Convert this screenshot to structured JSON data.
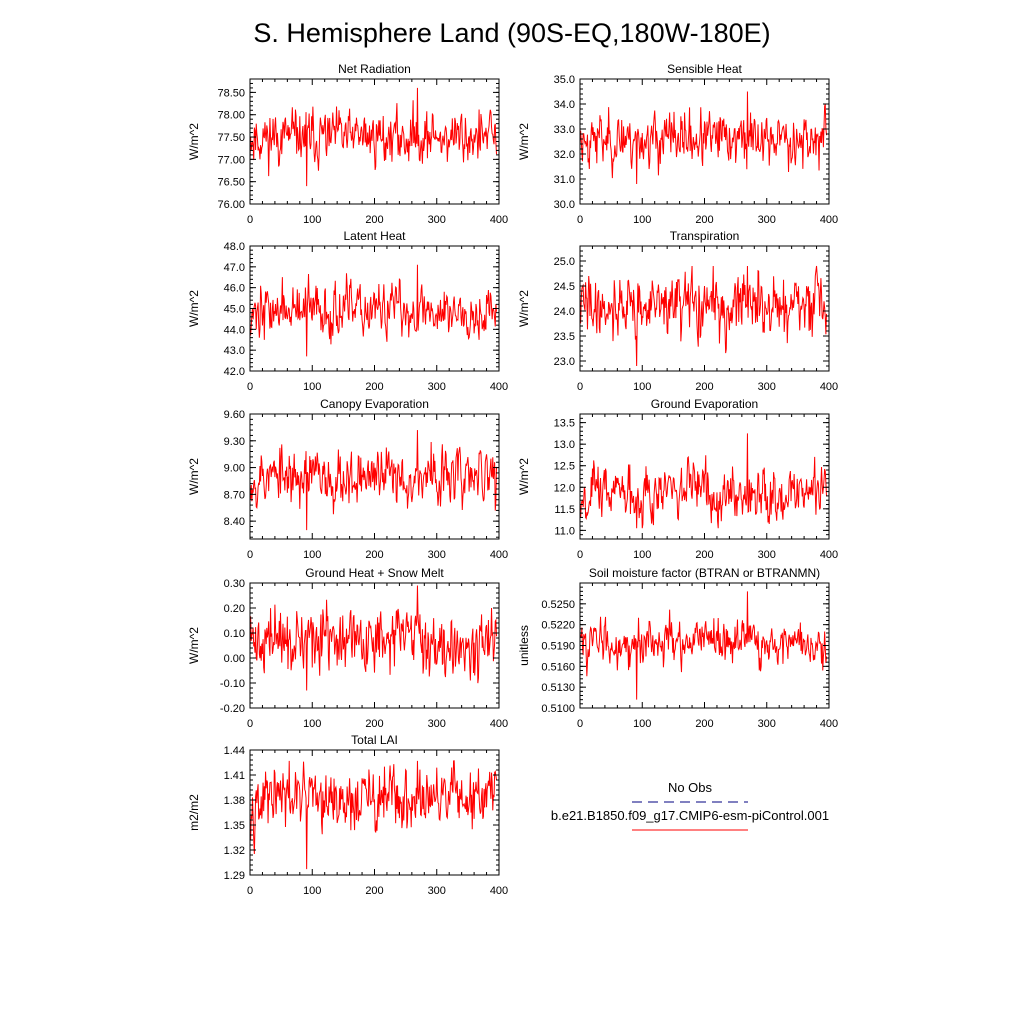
{
  "figure": {
    "title": "S. Hemisphere Land (90S-EQ,180W-180E)",
    "series_color": "#ff0000",
    "obs_color": "#000080"
  },
  "legend": {
    "obs_label": "No Obs",
    "model_label": "b.e21.B1850.f09_g17.CMIP6-esm-piControl.001"
  },
  "chart_data": [
    {
      "type": "line",
      "title": "Net Radiation",
      "xlabel": "",
      "ylabel": "W/m^2",
      "xlim": [
        0,
        400
      ],
      "ylim": [
        76.0,
        78.8
      ],
      "xticks": [
        0,
        100,
        200,
        300,
        400
      ],
      "yticks": [
        76.0,
        76.5,
        77.0,
        77.5,
        78.0,
        78.5
      ],
      "ytick_labels": [
        "76.00",
        "76.50",
        "77.00",
        "77.50",
        "78.00",
        "78.50"
      ],
      "series": [
        {
          "mean": 77.5,
          "amp": 0.28,
          "min": 76.4,
          "max": 78.6,
          "seed": 11
        }
      ]
    },
    {
      "type": "line",
      "title": "Sensible Heat",
      "xlabel": "",
      "ylabel": "W/m^2",
      "xlim": [
        0,
        400
      ],
      "ylim": [
        30.0,
        35.0
      ],
      "xticks": [
        0,
        100,
        200,
        300,
        400
      ],
      "yticks": [
        30.0,
        31.0,
        32.0,
        33.0,
        34.0,
        35.0
      ],
      "ytick_labels": [
        "30.0",
        "31.0",
        "32.0",
        "33.0",
        "34.0",
        "35.0"
      ],
      "series": [
        {
          "mean": 32.6,
          "amp": 0.5,
          "min": 30.8,
          "max": 34.5,
          "seed": 23
        }
      ]
    },
    {
      "type": "line",
      "title": "Latent Heat",
      "xlabel": "",
      "ylabel": "W/m^2",
      "xlim": [
        0,
        400
      ],
      "ylim": [
        42.0,
        48.0
      ],
      "xticks": [
        0,
        100,
        200,
        300,
        400
      ],
      "yticks": [
        42.0,
        43.0,
        44.0,
        45.0,
        46.0,
        47.0,
        48.0
      ],
      "ytick_labels": [
        "42.0",
        "43.0",
        "44.0",
        "45.0",
        "46.0",
        "47.0",
        "48.0"
      ],
      "series": [
        {
          "mean": 44.9,
          "amp": 0.6,
          "min": 42.7,
          "max": 47.1,
          "seed": 37
        }
      ]
    },
    {
      "type": "line",
      "title": "Transpiration",
      "xlabel": "",
      "ylabel": "W/m^2",
      "xlim": [
        0,
        400
      ],
      "ylim": [
        22.8,
        25.3
      ],
      "xticks": [
        0,
        100,
        200,
        300,
        400
      ],
      "yticks": [
        23.0,
        23.5,
        24.0,
        24.5,
        25.0
      ],
      "ytick_labels": [
        "23.0",
        "23.5",
        "24.0",
        "24.5",
        "25.0"
      ],
      "series": [
        {
          "mean": 24.1,
          "amp": 0.3,
          "min": 22.9,
          "max": 24.9,
          "seed": 41
        }
      ]
    },
    {
      "type": "line",
      "title": "Canopy Evaporation",
      "xlabel": "",
      "ylabel": "W/m^2",
      "xlim": [
        0,
        400
      ],
      "ylim": [
        8.2,
        9.6
      ],
      "xticks": [
        0,
        100,
        200,
        300,
        400
      ],
      "yticks": [
        8.4,
        8.7,
        9.0,
        9.3,
        9.6
      ],
      "ytick_labels": [
        "8.40",
        "8.70",
        "9.00",
        "9.30",
        "9.60"
      ],
      "series": [
        {
          "mean": 8.9,
          "amp": 0.15,
          "min": 8.3,
          "max": 9.42,
          "seed": 53
        }
      ]
    },
    {
      "type": "line",
      "title": "Ground Evaporation",
      "xlabel": "",
      "ylabel": "W/m^2",
      "xlim": [
        0,
        400
      ],
      "ylim": [
        10.8,
        13.7
      ],
      "xticks": [
        0,
        100,
        200,
        300,
        400
      ],
      "yticks": [
        11.0,
        11.5,
        12.0,
        12.5,
        13.0,
        13.5
      ],
      "ytick_labels": [
        "11.0",
        "11.5",
        "12.0",
        "12.5",
        "13.0",
        "13.5"
      ],
      "series": [
        {
          "mean": 11.9,
          "amp": 0.3,
          "min": 11.05,
          "max": 13.25,
          "seed": 67
        }
      ]
    },
    {
      "type": "line",
      "title": "Ground Heat + Snow Melt",
      "xlabel": "",
      "ylabel": "W/m^2",
      "xlim": [
        0,
        400
      ],
      "ylim": [
        -0.2,
        0.3
      ],
      "xticks": [
        0,
        100,
        200,
        300,
        400
      ],
      "yticks": [
        -0.2,
        -0.1,
        0.0,
        0.1,
        0.2,
        0.3
      ],
      "ytick_labels": [
        "-0.20",
        "-0.10",
        "0.00",
        "0.10",
        "0.20",
        "0.30"
      ],
      "series": [
        {
          "mean": 0.07,
          "amp": 0.06,
          "min": -0.13,
          "max": 0.29,
          "seed": 71
        }
      ]
    },
    {
      "type": "line",
      "title": "Soil moisture factor (BTRAN or BTRANMN)",
      "xlabel": "",
      "ylabel": "unitless",
      "xlim": [
        0,
        400
      ],
      "ylim": [
        0.51,
        0.528
      ],
      "xticks": [
        0,
        100,
        200,
        300,
        400
      ],
      "yticks": [
        0.51,
        0.513,
        0.516,
        0.519,
        0.522,
        0.525
      ],
      "ytick_labels": [
        "0.5100",
        "0.5130",
        "0.5160",
        "0.5190",
        "0.5220",
        "0.5250"
      ],
      "series": [
        {
          "mean": 0.5195,
          "amp": 0.0015,
          "min": 0.5112,
          "max": 0.5268,
          "seed": 83
        }
      ]
    },
    {
      "type": "line",
      "title": "Total LAI",
      "xlabel": "",
      "ylabel": "m2/m2",
      "xlim": [
        0,
        400
      ],
      "ylim": [
        1.29,
        1.44
      ],
      "xticks": [
        0,
        100,
        200,
        300,
        400
      ],
      "yticks": [
        1.29,
        1.32,
        1.35,
        1.38,
        1.41,
        1.44
      ],
      "ytick_labels": [
        "1.29",
        "1.32",
        "1.35",
        "1.38",
        "1.41",
        "1.44"
      ],
      "series": [
        {
          "mean": 1.38,
          "amp": 0.018,
          "min": 1.297,
          "max": 1.427,
          "seed": 97
        }
      ]
    }
  ]
}
